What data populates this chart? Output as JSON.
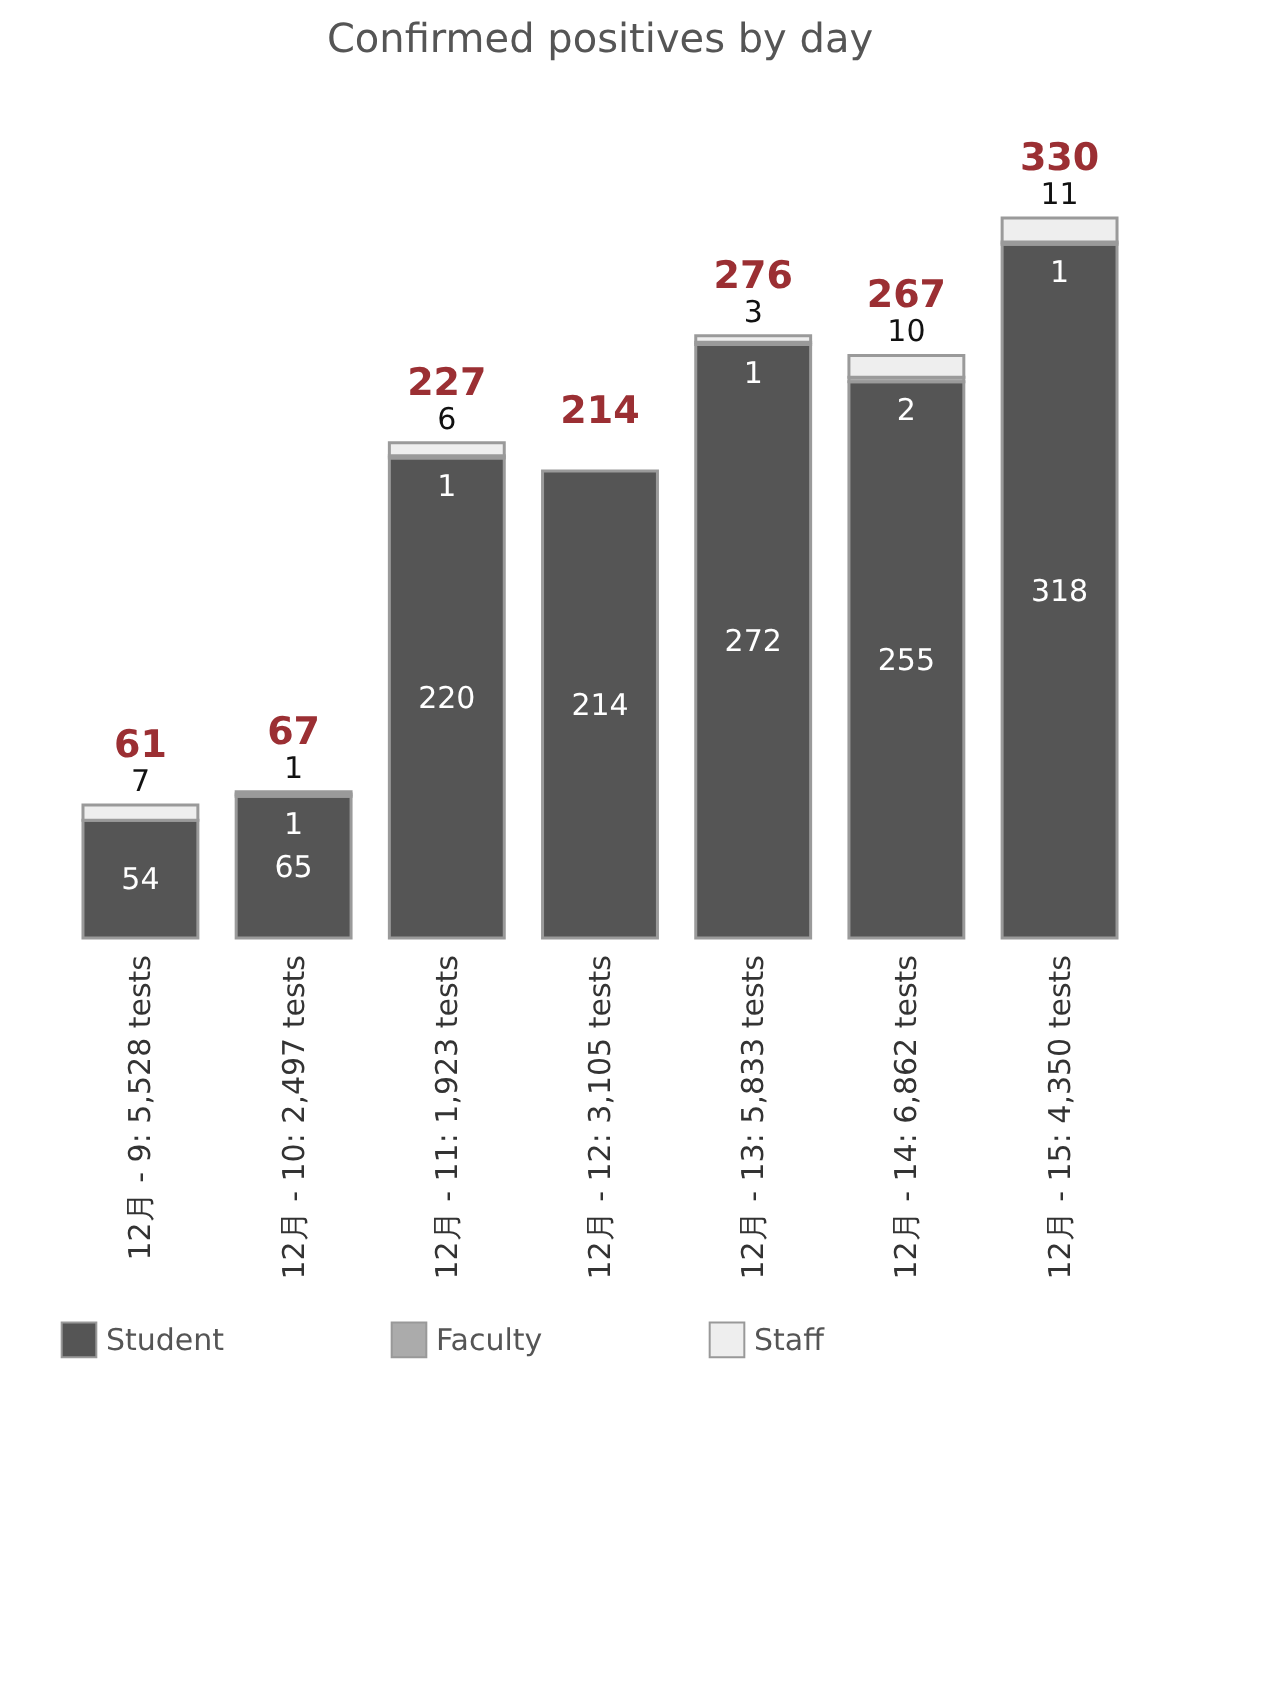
{
  "chart_data": {
    "type": "bar",
    "title": "Confirmed positives by day",
    "stacked": true,
    "data_labels": true,
    "legend": "bottom",
    "categories": [
      "12月 - 9: 5,528 tests",
      "12月 - 10: 2,497 tests",
      "12月 - 11: 1,923 tests",
      "12月 - 12: 3,105 tests",
      "12月 - 13: 5,833 tests",
      "12月 - 14: 6,862 tests",
      "12月 - 15: 4,350 tests"
    ],
    "series": [
      {
        "name": "Student",
        "color": "#555555",
        "values": [
          54,
          65,
          220,
          214,
          272,
          255,
          318
        ]
      },
      {
        "name": "Faculty",
        "color": "#ababab",
        "values": [
          null,
          1,
          1,
          null,
          1,
          2,
          1
        ]
      },
      {
        "name": "Staff",
        "color": "#eeeeee",
        "values": [
          7,
          1,
          6,
          null,
          3,
          10,
          11
        ]
      }
    ],
    "totals": [
      "61",
      "67",
      "227",
      "214",
      "276",
      "267",
      "330"
    ]
  }
}
